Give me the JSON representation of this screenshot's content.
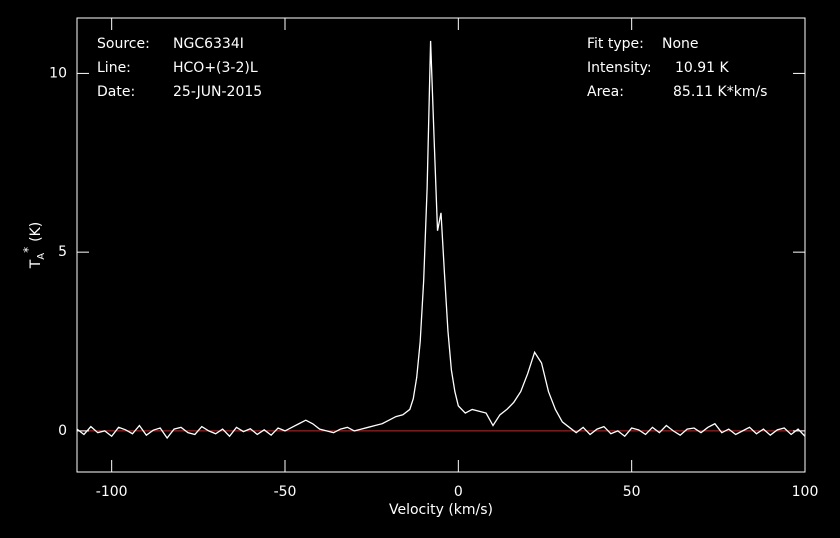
{
  "chart_data": {
    "type": "line",
    "x_label": "Velocity (km/s)",
    "y_label": {
      "main": "T",
      "sub": "A",
      "sup": "*",
      "unit": "(K)"
    },
    "info_left": [
      {
        "label": "Source:",
        "value": "NGC6334I"
      },
      {
        "label": "Line:",
        "value": "HCO+(3-2)L"
      },
      {
        "label": "Date:",
        "value": "25-JUN-2015"
      }
    ],
    "info_right": [
      {
        "label": "Fit type:",
        "value": "None"
      },
      {
        "label": "Intensity:",
        "value": "10.91 K"
      },
      {
        "label": "Area:",
        "value": "85.11 K*km/s"
      }
    ],
    "xlim": [
      -110,
      100
    ],
    "ylim": [
      -1.15,
      11.55
    ],
    "xticks": [
      -100,
      -50,
      0,
      50,
      100
    ],
    "yticks": [
      0,
      5,
      10
    ],
    "baseline": 0,
    "baseline_color": "#d02020",
    "series": [
      {
        "color": "#ffffff",
        "x": [
          -110,
          -108,
          -106,
          -104,
          -102,
          -100,
          -98,
          -96,
          -94,
          -92,
          -90,
          -88,
          -86,
          -84,
          -82,
          -80,
          -78,
          -76,
          -74,
          -72,
          -70,
          -68,
          -66,
          -64,
          -62,
          -60,
          -58,
          -56,
          -54,
          -52,
          -50,
          -48,
          -46,
          -44,
          -42,
          -40,
          -38,
          -36,
          -34,
          -32,
          -30,
          -28,
          -26,
          -24,
          -22,
          -20,
          -18,
          -16,
          -14,
          -13,
          -12,
          -11,
          -10,
          -9,
          -8,
          -7,
          -6,
          -5,
          -4,
          -3,
          -2,
          -1,
          0,
          2,
          4,
          6,
          8,
          10,
          12,
          14,
          16,
          18,
          20,
          22,
          24,
          26,
          28,
          30,
          32,
          34,
          36,
          38,
          40,
          42,
          44,
          46,
          48,
          50,
          52,
          54,
          56,
          58,
          60,
          62,
          64,
          66,
          68,
          70,
          72,
          74,
          76,
          78,
          80,
          82,
          84,
          86,
          88,
          90,
          92,
          94,
          96,
          98,
          100
        ],
        "values": [
          0.05,
          -0.1,
          0.12,
          -0.05,
          0.0,
          -0.15,
          0.1,
          0.03,
          -0.08,
          0.15,
          -0.12,
          0.02,
          0.08,
          -0.2,
          0.05,
          0.1,
          -0.05,
          -0.1,
          0.12,
          0.0,
          -0.08,
          0.05,
          -0.15,
          0.1,
          -0.02,
          0.06,
          -0.1,
          0.03,
          -0.12,
          0.08,
          0.0,
          0.1,
          0.2,
          0.3,
          0.2,
          0.05,
          0.0,
          -0.05,
          0.05,
          0.1,
          0.0,
          0.05,
          0.1,
          0.15,
          0.2,
          0.3,
          0.4,
          0.45,
          0.6,
          0.9,
          1.5,
          2.5,
          4.2,
          6.8,
          10.91,
          8.2,
          5.6,
          6.1,
          4.4,
          2.8,
          1.7,
          1.1,
          0.7,
          0.5,
          0.6,
          0.55,
          0.5,
          0.15,
          0.45,
          0.6,
          0.8,
          1.1,
          1.6,
          2.2,
          1.9,
          1.1,
          0.6,
          0.25,
          0.1,
          -0.05,
          0.1,
          -0.1,
          0.05,
          0.12,
          -0.08,
          0.0,
          -0.15,
          0.08,
          0.03,
          -0.1,
          0.1,
          -0.05,
          0.15,
          0.0,
          -0.12,
          0.05,
          0.08,
          -0.05,
          0.1,
          0.2,
          -0.05,
          0.05,
          -0.1,
          0.0,
          0.1,
          -0.08,
          0.05,
          -0.12,
          0.03,
          0.08,
          -0.1,
          0.05,
          -0.15
        ]
      }
    ]
  }
}
